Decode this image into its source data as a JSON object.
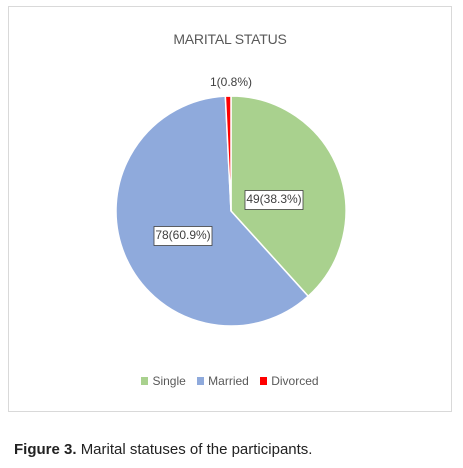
{
  "chart_data": {
    "type": "pie",
    "title": "MARITAL STATUS",
    "slices": [
      {
        "name": "Single",
        "value": 49,
        "label": "49(38.3%)",
        "color": "#a9d18e"
      },
      {
        "name": "Married",
        "value": 78,
        "label": "78(60.9%)",
        "color": "#8faadc"
      },
      {
        "name": "Divorced",
        "value": 1,
        "label": "1(0.8%)",
        "color": "#ff0000"
      }
    ],
    "legend_position": "bottom"
  },
  "caption": {
    "label": "Figure 3.",
    "text": "Marital statuses of the participants."
  }
}
